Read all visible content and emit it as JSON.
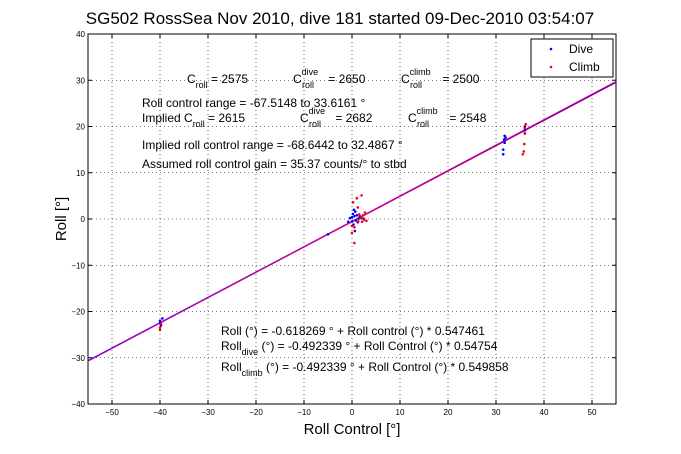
{
  "chart_data": {
    "type": "scatter",
    "title": "SG502 RossSea Nov 2010, dive 181 started 09-Dec-2010 03:54:07",
    "xlabel": "Roll Control [°]",
    "ylabel": "Roll [°]",
    "xlim": [
      -55,
      55
    ],
    "ylim": [
      -40,
      40
    ],
    "xticks": [
      -50,
      -40,
      -30,
      -20,
      -10,
      0,
      10,
      20,
      30,
      40,
      50
    ],
    "yticks": [
      -40,
      -30,
      -20,
      -10,
      0,
      10,
      20,
      30,
      40
    ],
    "grid": true,
    "legend_position": "top-right",
    "series": [
      {
        "name": "Dive",
        "color": "#0000ff",
        "marker": "dot",
        "points": [
          [
            -40,
            -22.5
          ],
          [
            -40,
            -22
          ],
          [
            -39.8,
            -23
          ],
          [
            -39.5,
            -21.5
          ],
          [
            -5,
            -3.3
          ],
          [
            -0.8,
            -0.6
          ],
          [
            -0.4,
            0.2
          ],
          [
            0,
            0.4
          ],
          [
            0,
            -0.5
          ],
          [
            0.2,
            1.1
          ],
          [
            0.3,
            -1.2
          ],
          [
            0.4,
            2.0
          ],
          [
            0.5,
            0.6
          ],
          [
            0.6,
            -2.6
          ],
          [
            0.7,
            1.6
          ],
          [
            0.8,
            -0.3
          ],
          [
            1.0,
            0.8
          ],
          [
            1.2,
            -0.7
          ],
          [
            1.4,
            0.1
          ],
          [
            1.6,
            0.6
          ],
          [
            2.0,
            0.2
          ],
          [
            2.5,
            -0.1
          ],
          [
            31.5,
            14
          ],
          [
            31.5,
            15
          ],
          [
            31.7,
            17.2
          ],
          [
            31.8,
            18
          ],
          [
            31.8,
            16.5
          ],
          [
            32,
            17.6
          ],
          [
            36,
            18.5
          ],
          [
            36,
            19.2
          ],
          [
            36,
            20
          ]
        ]
      },
      {
        "name": "Climb",
        "color": "#ff0000",
        "marker": "dot",
        "points": [
          [
            -40,
            -23.5
          ],
          [
            -40,
            -24
          ],
          [
            -39.8,
            -22.6
          ],
          [
            0,
            -1.5
          ],
          [
            0,
            -3
          ],
          [
            0.2,
            3.6
          ],
          [
            0.5,
            -5.2
          ],
          [
            0.5,
            -1.8
          ],
          [
            1.0,
            4.5
          ],
          [
            1.2,
            2.5
          ],
          [
            1.3,
            -0.5
          ],
          [
            1.5,
            1.0
          ],
          [
            1.8,
            0.3
          ],
          [
            2.0,
            5.1
          ],
          [
            2.1,
            -0.6
          ],
          [
            2.3,
            0.8
          ],
          [
            2.5,
            0.1
          ],
          [
            2.7,
            1.4
          ],
          [
            3.0,
            -0.4
          ],
          [
            35.6,
            14
          ],
          [
            35.8,
            14.6
          ],
          [
            35.9,
            16.2
          ],
          [
            36,
            18.5
          ],
          [
            36,
            19.7
          ],
          [
            36.2,
            20.5
          ]
        ]
      }
    ],
    "fit_lines": [
      {
        "color": "#ff0000",
        "intercept": -0.618269,
        "slope": 0.547461
      },
      {
        "color": "#0000ff",
        "intercept": -0.492339,
        "slope": 0.54754
      },
      {
        "color": "#c000c0",
        "intercept": -0.492339,
        "slope": 0.549858
      }
    ]
  },
  "annotations": {
    "c_roll": "C",
    "c_roll_sub": "roll",
    "c_roll_val": " = 2575",
    "c_dive": "C",
    "c_dive_sup": "dive",
    "c_dive_sub": "roll",
    "c_dive_val": " = 2650",
    "c_climb": "C",
    "c_climb_sup": "climb",
    "c_climb_sub": "roll",
    "c_climb_val": " = 2500",
    "range_line": "Roll control range = -67.5148 to 33.6161 °",
    "implied_prefix": "Implied C",
    "implied_sub": "roll",
    "implied_val": " = 2615",
    "implied_dive": "C",
    "implied_dive_sup": "dive",
    "implied_dive_sub": "roll",
    "implied_dive_val": " = 2682",
    "implied_climb": "C",
    "implied_climb_sup": "climb",
    "implied_climb_sub": "roll",
    "implied_climb_val": " = 2548",
    "implied_range": "Implied roll control range = -68.6442 to 32.4867 °",
    "gain_line": "Assumed roll control gain = 35.37 counts/° to stbd",
    "fit_all": "Roll (°) = -0.618269 ° + Roll control (°) * 0.547461",
    "fit_dive_prefix": "Roll",
    "fit_dive_sub": "dive",
    "fit_dive_rest": " (°) = -0.492339 ° + Roll Control (°) * 0.54754",
    "fit_climb_prefix": "Roll",
    "fit_climb_sub": "climb",
    "fit_climb_rest": " (°) = -0.492339 ° + Roll Control (°) * 0.549858"
  }
}
